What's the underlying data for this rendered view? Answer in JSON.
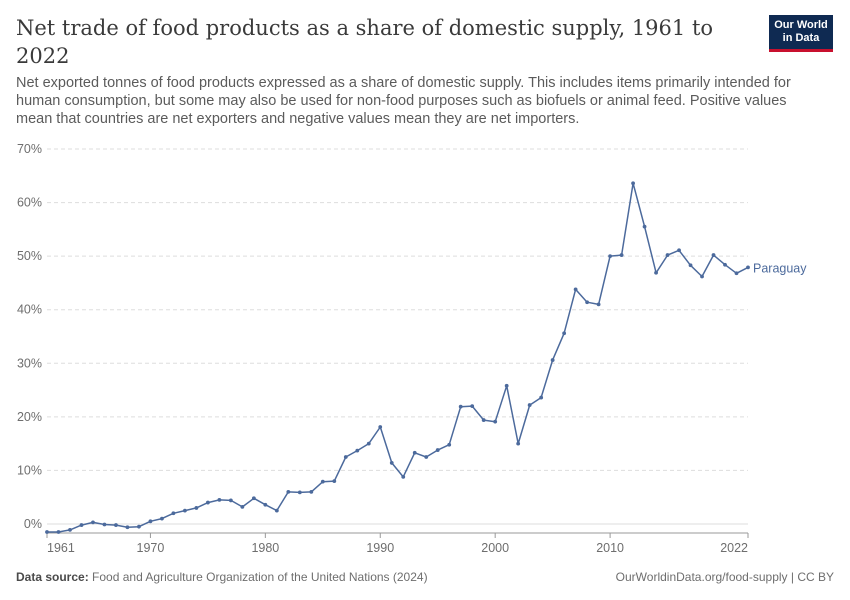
{
  "header": {
    "title": "Net trade of food products as a share of domestic supply, 1961 to 2022",
    "subtitle": "Net exported tonnes of food products expressed as a share of domestic supply. This includes items primarily intended for human consumption, but some may also be used for non-food purposes such as biofuels or animal feed. Positive values mean that countries are net exporters and negative values mean they are net importers.",
    "logo_line1": "Our World",
    "logo_line2": "in Data"
  },
  "footer": {
    "source_label": "Data source:",
    "source_text": "Food and Agriculture Organization of the United Nations (2024)",
    "right_text": "OurWorldinData.org/food-supply | CC BY"
  },
  "colors": {
    "series": "#4c6a9c",
    "grid": "#dddddd",
    "axis": "#999999",
    "logo_bg": "#0f2a52",
    "logo_accent": "#c8102e"
  },
  "chart_data": {
    "type": "line",
    "title": "Net trade of food products as a share of domestic supply, 1961 to 2022",
    "xlabel": "",
    "ylabel": "",
    "xlim": [
      1961,
      2022
    ],
    "ylim": [
      0,
      70
    ],
    "y_ticks": [
      0,
      10,
      20,
      30,
      40,
      50,
      60,
      70
    ],
    "y_tick_labels": [
      "0%",
      "10%",
      "20%",
      "30%",
      "40%",
      "50%",
      "60%",
      "70%"
    ],
    "x_ticks": [
      1961,
      1970,
      1980,
      1990,
      2000,
      2010,
      2022
    ],
    "x_tick_labels": [
      "1961",
      "1970",
      "1980",
      "1990",
      "2000",
      "2010",
      "2022"
    ],
    "grid": "horizontal dashed",
    "legend": "end-of-line label",
    "series": [
      {
        "name": "Paraguay",
        "x": [
          1961,
          1962,
          1963,
          1964,
          1965,
          1966,
          1967,
          1968,
          1969,
          1970,
          1971,
          1972,
          1973,
          1974,
          1975,
          1976,
          1977,
          1978,
          1979,
          1980,
          1981,
          1982,
          1983,
          1984,
          1985,
          1986,
          1987,
          1988,
          1989,
          1990,
          1991,
          1992,
          1993,
          1994,
          1995,
          1996,
          1997,
          1998,
          1999,
          2000,
          2001,
          2002,
          2003,
          2004,
          2005,
          2006,
          2007,
          2008,
          2009,
          2010,
          2011,
          2012,
          2013,
          2014,
          2015,
          2016,
          2017,
          2018,
          2019,
          2020,
          2021,
          2022
        ],
        "values": [
          -1.5,
          -1.5,
          -1.1,
          -0.2,
          0.3,
          -0.1,
          -0.2,
          -0.6,
          -0.5,
          0.5,
          1.0,
          2.0,
          2.5,
          3.0,
          4.0,
          4.5,
          4.4,
          3.2,
          4.8,
          3.6,
          2.5,
          6.0,
          5.9,
          6.0,
          7.9,
          8.0,
          12.5,
          13.7,
          15.0,
          18.1,
          11.4,
          8.8,
          13.3,
          12.5,
          13.8,
          14.8,
          21.9,
          22.0,
          19.4,
          19.1,
          25.8,
          15.0,
          22.2,
          23.6,
          30.6,
          35.6,
          43.8,
          41.4,
          41.0,
          50.0,
          50.2,
          63.6,
          55.5,
          46.9,
          50.2,
          51.1,
          48.3,
          46.2,
          50.2,
          48.4,
          46.8,
          47.9
        ]
      }
    ]
  }
}
